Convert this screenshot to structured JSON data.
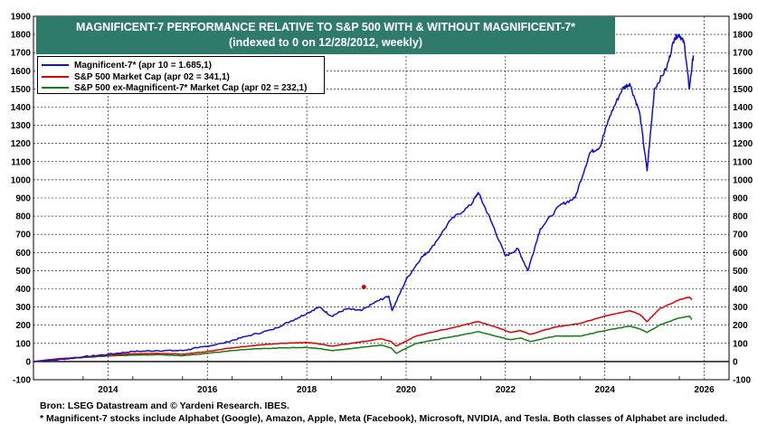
{
  "chart_data": {
    "type": "line",
    "title": "MAGNIFICENT-7 PERFORMANCE RELATIVE TO S&P 500 WITH & WITHOUT MAGNIFICENT-7*",
    "subtitle": "(indexed to 0 on 12/28/2012, weekly)",
    "xlabel": "",
    "ylabel": "",
    "xlim": [
      2013.0,
      2027.0
    ],
    "ylim": [
      -100,
      1900
    ],
    "y_ticks": [
      "-100",
      "0",
      "100",
      "200",
      "300",
      "400",
      "500",
      "600",
      "700",
      "800",
      "900",
      "1000",
      "1100",
      "1200",
      "1300",
      "1400",
      "1500",
      "1600",
      "1700",
      "1800",
      "1900"
    ],
    "x_ticks": [
      "2014",
      "2016",
      "2018",
      "2020",
      "2022",
      "2024",
      "2026"
    ],
    "grid": true,
    "legend_position": "top-left",
    "series": [
      {
        "name": "Magnificent-7* (apr 10 = 1.685,1)",
        "color": "#1010d0",
        "x": [
          2013.0,
          2013.5,
          2014.0,
          2014.5,
          2015.0,
          2015.5,
          2016.0,
          2016.3,
          2016.8,
          2017.3,
          2017.8,
          2018.2,
          2018.5,
          2018.75,
          2019.0,
          2019.3,
          2019.6,
          2019.9,
          2020.15,
          2020.22,
          2020.5,
          2020.8,
          2021.0,
          2021.4,
          2021.8,
          2021.95,
          2022.2,
          2022.5,
          2022.75,
          2022.95,
          2023.2,
          2023.6,
          2023.9,
          2024.2,
          2024.4,
          2024.6,
          2024.85,
          2025.0,
          2025.2,
          2025.35,
          2025.5,
          2025.75,
          2025.9,
          2026.0,
          2026.1,
          2026.2,
          2026.28
        ],
        "values": [
          0,
          10,
          25,
          40,
          55,
          60,
          60,
          75,
          100,
          140,
          175,
          225,
          265,
          300,
          250,
          290,
          280,
          330,
          360,
          280,
          450,
          570,
          620,
          780,
          860,
          930,
          780,
          580,
          620,
          500,
          730,
          860,
          900,
          1150,
          1180,
          1350,
          1500,
          1530,
          1370,
          1050,
          1500,
          1620,
          1780,
          1800,
          1750,
          1500,
          1685
        ]
      },
      {
        "name": "S&P 500 Market Cap (apr 02 = 341,1)",
        "color": "#e00000",
        "x": [
          2013.0,
          2013.5,
          2014.0,
          2014.5,
          2015.0,
          2015.5,
          2016.0,
          2016.5,
          2017.0,
          2017.5,
          2018.0,
          2018.5,
          2018.8,
          2019.0,
          2019.5,
          2020.0,
          2020.2,
          2020.3,
          2020.7,
          2021.0,
          2021.5,
          2021.95,
          2022.3,
          2022.6,
          2022.8,
          2023.0,
          2023.5,
          2024.0,
          2024.5,
          2025.0,
          2025.2,
          2025.35,
          2025.6,
          2026.0,
          2026.2,
          2026.25
        ],
        "values": [
          0,
          15,
          25,
          35,
          42,
          45,
          40,
          55,
          75,
          90,
          100,
          105,
          95,
          85,
          105,
          125,
          110,
          85,
          140,
          160,
          190,
          220,
          190,
          160,
          170,
          150,
          190,
          210,
          250,
          280,
          260,
          220,
          290,
          340,
          355,
          341
        ]
      },
      {
        "name": "S&P 500 ex-Magnificent-7* Market Cap (apr 02 = 232,1)",
        "color": "#108010",
        "x": [
          2013.0,
          2013.5,
          2014.0,
          2014.5,
          2015.0,
          2015.5,
          2016.0,
          2016.5,
          2017.0,
          2017.5,
          2018.0,
          2018.5,
          2018.8,
          2019.0,
          2019.5,
          2020.0,
          2020.2,
          2020.3,
          2020.7,
          2021.0,
          2021.5,
          2021.95,
          2022.3,
          2022.6,
          2022.8,
          2023.0,
          2023.5,
          2024.0,
          2024.5,
          2025.0,
          2025.2,
          2025.35,
          2025.6,
          2026.0,
          2026.2,
          2026.25
        ],
        "values": [
          0,
          15,
          22,
          30,
          35,
          38,
          32,
          45,
          60,
          70,
          75,
          78,
          70,
          60,
          75,
          90,
          75,
          45,
          100,
          115,
          140,
          165,
          140,
          120,
          130,
          110,
          140,
          140,
          170,
          195,
          180,
          160,
          200,
          240,
          250,
          232
        ]
      }
    ],
    "annotations": [
      {
        "type": "point",
        "x": 2019.65,
        "y": 410,
        "color": "#e00000"
      }
    ]
  },
  "footer": {
    "source": "Bron: LSEG Datastream and © Yardeni Research. IBES.",
    "note": "* Magnificent-7 stocks include Alphabet (Google), Amazon, Apple, Meta (Facebook), Microsoft, NVIDIA, and Tesla. Both classes of Alphabet are included."
  }
}
